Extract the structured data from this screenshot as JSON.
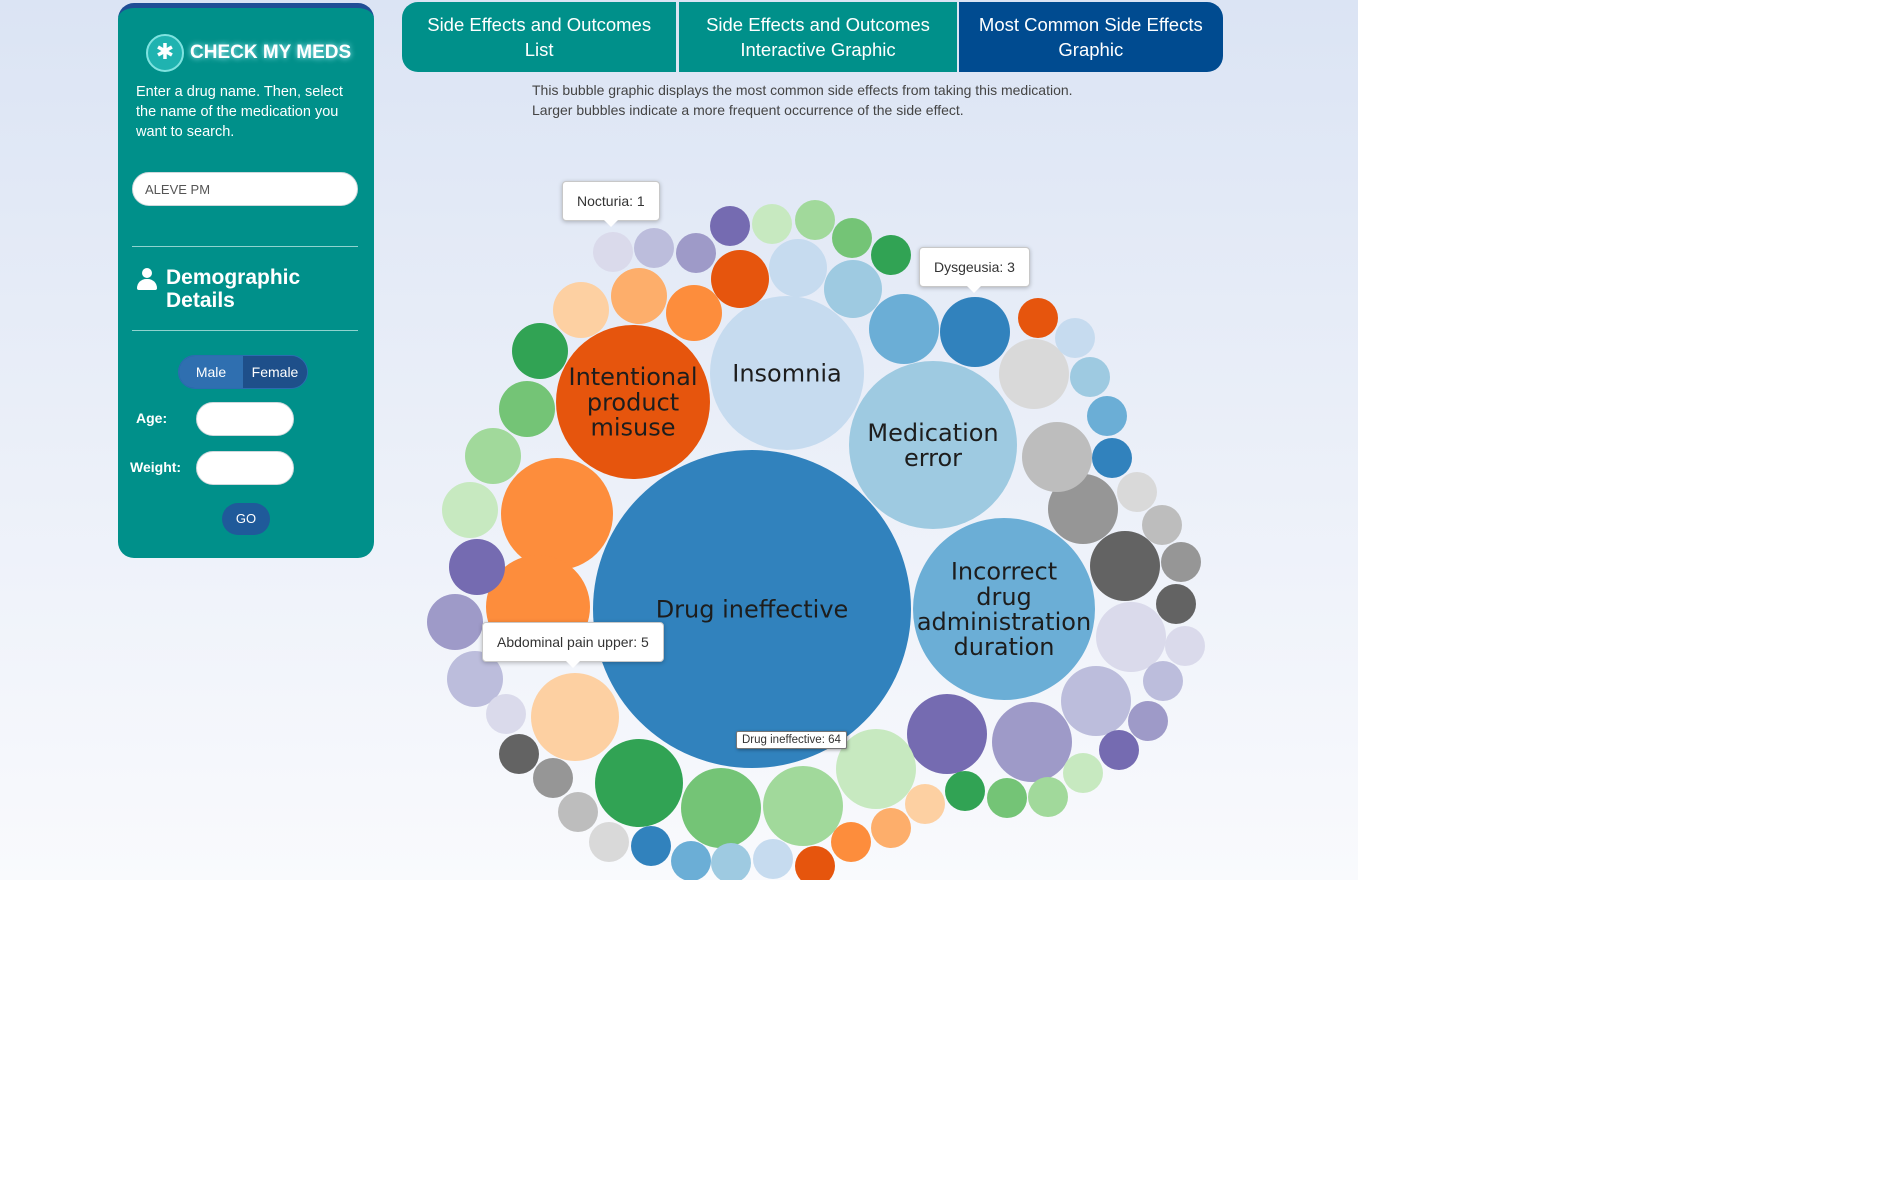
{
  "sidebar": {
    "logo_text": "CHECK MY MEDS",
    "logo_icon": "medical-star-of-life-icon",
    "intro": "Enter a drug name. Then, select the name of the medication you want to search.",
    "search_value": "ALEVE PM",
    "demographics_title": "Demographic Details",
    "gender_options": [
      "Male",
      "Female"
    ],
    "age_label": "Age:",
    "weight_label": "Weight:",
    "go_label": "GO"
  },
  "tabs": [
    {
      "label": "Side Effects and Outcomes List",
      "active": false
    },
    {
      "label": "Side Effects and Outcomes Interactive Graphic",
      "active": false
    },
    {
      "label": "Most Common Side Effects Graphic",
      "active": true
    }
  ],
  "description": "This bubble graphic displays the most common side effects from taking this medication. Larger bubbles indicate a more frequent occurrence of the side effect.",
  "tooltips": {
    "nocturia": "Nocturia: 1",
    "dysgeusia": "Dysgeusia: 3",
    "abdominal": "Abdominal pain upper: 5",
    "drug_ineffective": "Drug ineffective: 64"
  },
  "colors": {
    "teal": "#00908a",
    "navy": "#004b90"
  },
  "chart_data": {
    "type": "bubble",
    "labeled_bubbles": [
      {
        "name": "Drug ineffective",
        "value": 64,
        "color": "#3182bd"
      },
      {
        "name": "Incorrect drug administration duration",
        "color": "#6baed6"
      },
      {
        "name": "Medication error",
        "color": "#9ecae1"
      },
      {
        "name": "Insomnia",
        "color": "#c6dbef"
      },
      {
        "name": "Intentional product misuse",
        "color": "#e6550d"
      }
    ],
    "tooltip_values": [
      {
        "name": "Nocturia",
        "value": 1
      },
      {
        "name": "Dysgeusia",
        "value": 3
      },
      {
        "name": "Abdominal pain upper",
        "value": 5
      }
    ]
  }
}
